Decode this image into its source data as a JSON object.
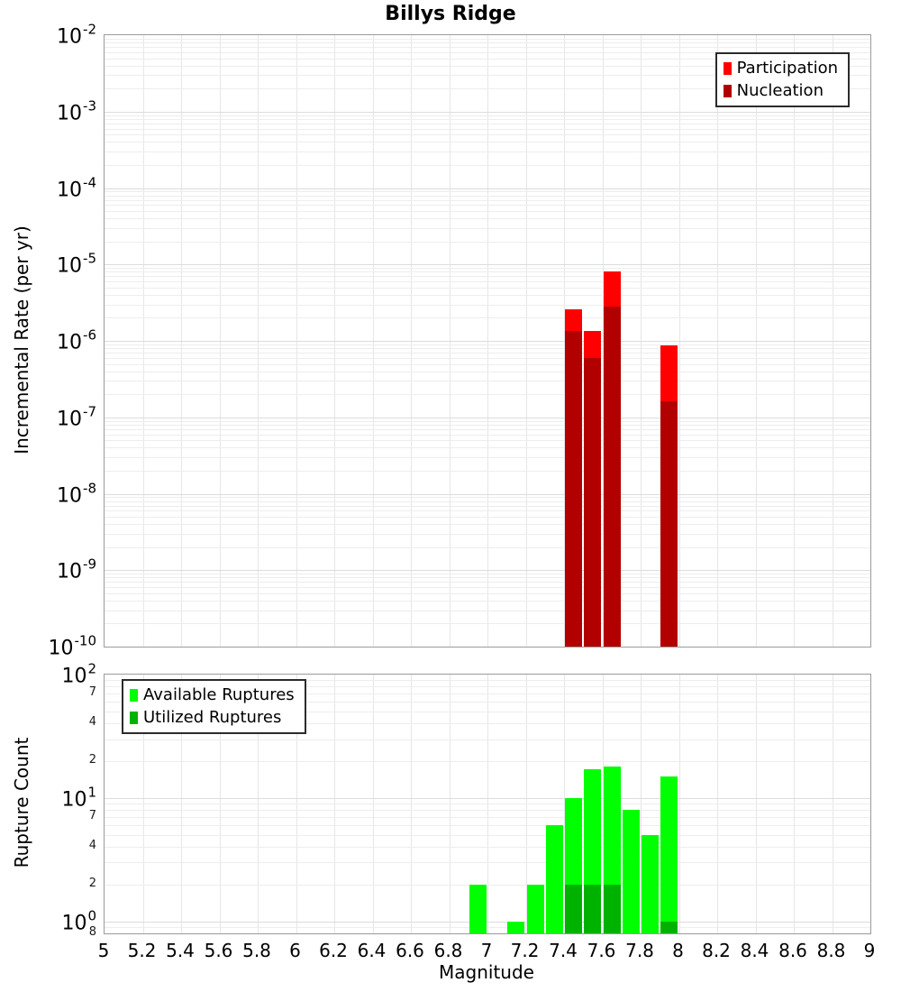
{
  "axes": {
    "x_label": "Magnitude",
    "x_ticks": [
      {
        "label": "5",
        "value": 5
      },
      {
        "label": "5.2",
        "value": 5.2
      },
      {
        "label": "5.4",
        "value": 5.4
      },
      {
        "label": "5.6",
        "value": 5.6
      },
      {
        "label": "5.8",
        "value": 5.8
      },
      {
        "label": "6",
        "value": 6
      },
      {
        "label": "6.2",
        "value": 6.2
      },
      {
        "label": "6.4",
        "value": 6.4
      },
      {
        "label": "6.6",
        "value": 6.6
      },
      {
        "label": "6.8",
        "value": 6.8
      },
      {
        "label": "7",
        "value": 7
      },
      {
        "label": "7.2",
        "value": 7.2
      },
      {
        "label": "7.4",
        "value": 7.4
      },
      {
        "label": "7.6",
        "value": 7.6
      },
      {
        "label": "7.8",
        "value": 7.8
      },
      {
        "label": "8",
        "value": 8
      },
      {
        "label": "8.2",
        "value": 8.2
      },
      {
        "label": "8.4",
        "value": 8.4
      },
      {
        "label": "8.6",
        "value": 8.6
      },
      {
        "label": "8.8",
        "value": 8.8
      },
      {
        "label": "9",
        "value": 9
      }
    ]
  },
  "chart_data": [
    {
      "type": "bar",
      "title": "Billys Ridge",
      "xlabel": "Magnitude",
      "ylabel": "Incremental Rate (per yr)",
      "yscale": "log",
      "xlim": [
        5,
        9
      ],
      "ylim": [
        1e-10,
        0.01
      ],
      "bin_width": 0.1,
      "grid": true,
      "legend_position": "top-right",
      "x": [
        7.45,
        7.55,
        7.65,
        7.95
      ],
      "series": [
        {
          "name": "Participation",
          "color": "#ff0000",
          "values": [
            2.6e-06,
            1.35e-06,
            8.2e-06,
            8.7e-07
          ]
        },
        {
          "name": "Nucleation",
          "color": "#b20000",
          "values": [
            1.35e-06,
            5.9e-07,
            2.8e-06,
            1.6e-07
          ]
        }
      ],
      "y_ticks": [
        {
          "kind": "major",
          "exp": "-2",
          "value": 0.01
        },
        {
          "kind": "major",
          "exp": "-3",
          "value": 0.001
        },
        {
          "kind": "major",
          "exp": "-4",
          "value": 0.0001
        },
        {
          "kind": "major",
          "exp": "-5",
          "value": 1e-05
        },
        {
          "kind": "major",
          "exp": "-6",
          "value": 1e-06
        },
        {
          "kind": "major",
          "exp": "-7",
          "value": 1e-07
        },
        {
          "kind": "major",
          "exp": "-8",
          "value": 1e-08
        },
        {
          "kind": "major",
          "exp": "-9",
          "value": 1e-09
        },
        {
          "kind": "major",
          "exp": "-10",
          "value": 1e-10
        }
      ]
    },
    {
      "type": "bar",
      "xlabel": "Magnitude",
      "ylabel": "Rupture Count",
      "yscale": "log",
      "xlim": [
        5,
        9
      ],
      "ylim": [
        0.8,
        100
      ],
      "bin_width": 0.1,
      "grid": true,
      "legend_position": "top-left",
      "x": [
        6.95,
        7.15,
        7.25,
        7.35,
        7.45,
        7.55,
        7.65,
        7.75,
        7.85,
        7.95
      ],
      "series": [
        {
          "name": "Available Ruptures",
          "color": "#00ff00",
          "values": [
            2,
            1,
            2,
            6,
            10,
            17,
            18,
            8,
            5,
            15
          ]
        },
        {
          "name": "Utilized Ruptures",
          "color": "#00b200",
          "values": [
            0,
            0,
            0,
            0,
            2,
            2,
            2,
            0,
            0,
            1
          ]
        }
      ],
      "y_ticks": [
        {
          "kind": "major",
          "exp": "2",
          "value": 100
        },
        {
          "kind": "minor",
          "label": "7",
          "value": 70
        },
        {
          "kind": "minor",
          "label": "4",
          "value": 40
        },
        {
          "kind": "minor",
          "label": "2",
          "value": 20
        },
        {
          "kind": "major",
          "exp": "1",
          "value": 10
        },
        {
          "kind": "minor",
          "label": "7",
          "value": 7
        },
        {
          "kind": "minor",
          "label": "4",
          "value": 4
        },
        {
          "kind": "minor",
          "label": "2",
          "value": 2
        },
        {
          "kind": "major",
          "exp": "0",
          "value": 1
        },
        {
          "kind": "minor",
          "label": "8",
          "value": 0.8
        }
      ]
    }
  ]
}
